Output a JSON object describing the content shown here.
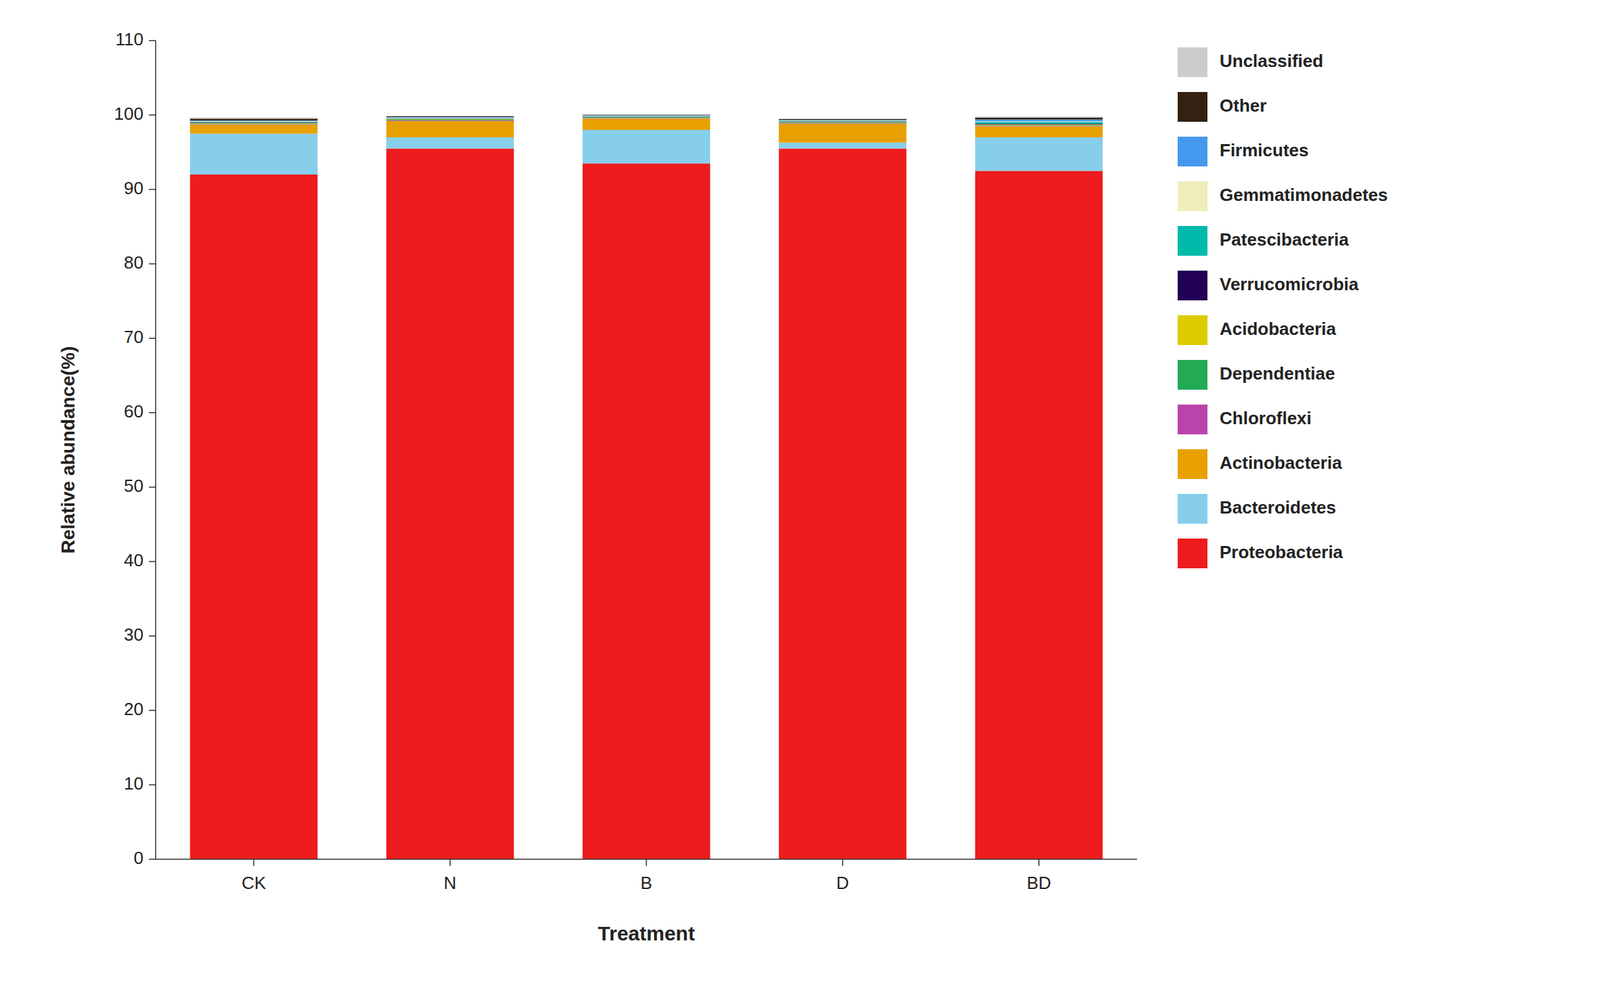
{
  "chart_data": {
    "type": "bar",
    "stacked": true,
    "xlabel": "Treatment",
    "ylabel": "Relative abundance(%)",
    "categories": [
      "CK",
      "N",
      "B",
      "D",
      "BD"
    ],
    "ylim": [
      0,
      110
    ],
    "yticks": [
      0,
      10,
      20,
      30,
      40,
      50,
      60,
      70,
      80,
      90,
      100,
      110
    ],
    "grid": false,
    "legend": "right",
    "series": [
      {
        "name": "Proteobacteria",
        "color": "#EE1C1C",
        "values": [
          92.0,
          95.5,
          93.5,
          95.5,
          92.5
        ]
      },
      {
        "name": "Bacteroidetes",
        "color": "#87CEEB",
        "values": [
          5.5,
          1.5,
          4.5,
          0.8,
          4.5
        ]
      },
      {
        "name": "Actinobacteria",
        "color": "#E8A000",
        "values": [
          1.2,
          2.2,
          1.5,
          2.5,
          1.5
        ]
      },
      {
        "name": "Chloroflexi",
        "color": "#BB44AA",
        "values": [
          0.08,
          0.08,
          0.05,
          0.08,
          0.08
        ]
      },
      {
        "name": "Dependentiae",
        "color": "#22AA55",
        "values": [
          0.08,
          0.08,
          0.05,
          0.08,
          0.08
        ]
      },
      {
        "name": "Acidobacteria",
        "color": "#DDCC00",
        "values": [
          0.08,
          0.08,
          0.08,
          0.08,
          0.08
        ]
      },
      {
        "name": "Verrucomicrobia",
        "color": "#220055",
        "values": [
          0.08,
          0.05,
          0.05,
          0.05,
          0.08
        ]
      },
      {
        "name": "Patescibacteria",
        "color": "#00BBAA",
        "values": [
          0.08,
          0.08,
          0.08,
          0.08,
          0.25
        ]
      },
      {
        "name": "Gemmatimonadetes",
        "color": "#EEEEBB",
        "values": [
          0.08,
          0.08,
          0.08,
          0.08,
          0.08
        ]
      },
      {
        "name": "Firmicutes",
        "color": "#4499EE",
        "values": [
          0.08,
          0.08,
          0.08,
          0.08,
          0.25
        ]
      },
      {
        "name": "Other",
        "color": "#332211",
        "values": [
          0.25,
          0.1,
          0.08,
          0.12,
          0.25
        ]
      },
      {
        "name": "Unclassified",
        "color": "#CCCCCC",
        "values": [
          0.15,
          0.03,
          0.03,
          0.07,
          0.15
        ]
      }
    ]
  }
}
